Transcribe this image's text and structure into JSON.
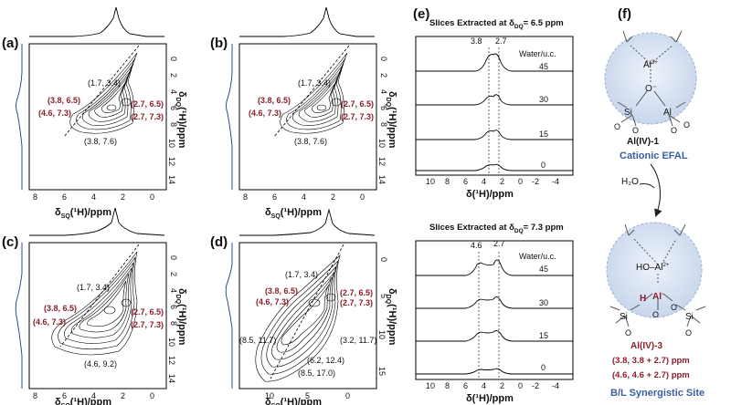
{
  "panels": {
    "a": {
      "label": "(a)"
    },
    "b": {
      "label": "(b)"
    },
    "c": {
      "label": "(c)"
    },
    "d": {
      "label": "(d)"
    },
    "e": {
      "label": "(e)"
    },
    "f": {
      "label": "(f)"
    }
  },
  "axes": {
    "x_label_main": "δ",
    "x_label_sub": "SQ",
    "x_label_rest": "(¹H)/ppm",
    "y_label_main": "δ",
    "y_label_sub": "DQ",
    "y_label_rest": "(¹H)/ppm",
    "slice_x_label": "δ(¹H)/ppm",
    "xticks_ab": [
      "8",
      "6",
      "4",
      "2",
      "0"
    ],
    "yticks_ab": [
      "0",
      "2",
      "4",
      "6",
      "8",
      "10",
      "12",
      "14"
    ],
    "xticks_d": [
      "10",
      "5",
      "0"
    ],
    "yticks_d": [
      "0",
      "5",
      "10",
      "15"
    ],
    "xticks_e": [
      "10",
      "8",
      "6",
      "4",
      "2",
      "0",
      "-2",
      "-4"
    ]
  },
  "annotations": {
    "a": {
      "p1": "(1.7, 3.4)",
      "p2": "(3.8, 6.5)",
      "p3": "(4.6, 7.3)",
      "p4": "(2.7, 6.5)",
      "p5": "(2.7, 7.3)",
      "p6": "(3.8, 7.6)"
    },
    "b": {
      "p1": "(1.7, 3.4)",
      "p2": "(3.8, 6.5)",
      "p3": "(4.6, 7.3)",
      "p4": "(2.7, 6.5)",
      "p5": "(2.7, 7.3)",
      "p6": "(3.8, 7.6)"
    },
    "c": {
      "p1": "(1.7, 3.4)",
      "p2": "(3.8, 6.5)",
      "p3": "(4.6, 7.3)",
      "p4": "(2.7, 6.5)",
      "p5": "(2.7, 7.3)",
      "p6": "(4.6, 9.2)"
    },
    "d": {
      "p1": "(1.7, 3.4)",
      "p2": "(3.8, 6.5)",
      "p3": "(4.6, 7.3)",
      "p4": "(2.7, 6.5)",
      "p5": "(2.7, 7.3)",
      "p6": "(8.5, 11.7)",
      "p7": "(6.2, 12.4)",
      "p8": "(3.2, 11.7)",
      "p9": "(8.5, 17.0)"
    }
  },
  "slices": {
    "top_title_pre": "Slices Extracted at δ",
    "top_title_sub": "DQ",
    "top_title_post": "= 6.5 ppm",
    "top_peak1": "3.8",
    "top_peak2": "2.7",
    "bottom_title_pre": "Slices Extracted at δ",
    "bottom_title_sub": "DQ",
    "bottom_title_post": "= 7.3 ppm",
    "bottom_peak1": "4.6",
    "bottom_peak2": "2.7",
    "water_label": "Water/u.c.",
    "water_values": [
      "45",
      "30",
      "15",
      "0"
    ]
  },
  "scheme": {
    "al_top": "Al",
    "al_top_charge": "3+",
    "si1": "Si",
    "al1": "Al",
    "o_label": "O",
    "o_minus": "O⁻",
    "name1": "Al(IV)-1",
    "desc1": "Cationic EFAL",
    "reagent": "H₂O",
    "ho_al": "HO–Al",
    "ho_al_charge": "2+",
    "h_label": "H",
    "al2": "Al",
    "al2_charge": "-",
    "name2": "Al(IV)-3",
    "corr1": "(3.8, 3.8 + 2.7) ppm",
    "corr2": "(4.6, 4.6 + 2.7) ppm",
    "desc2": "B/L Synergistic Site"
  },
  "colors": {
    "accent_red": "#8b1e2a",
    "accent_blue": "#3a5fa0",
    "sphere": "#d9e4f3"
  }
}
